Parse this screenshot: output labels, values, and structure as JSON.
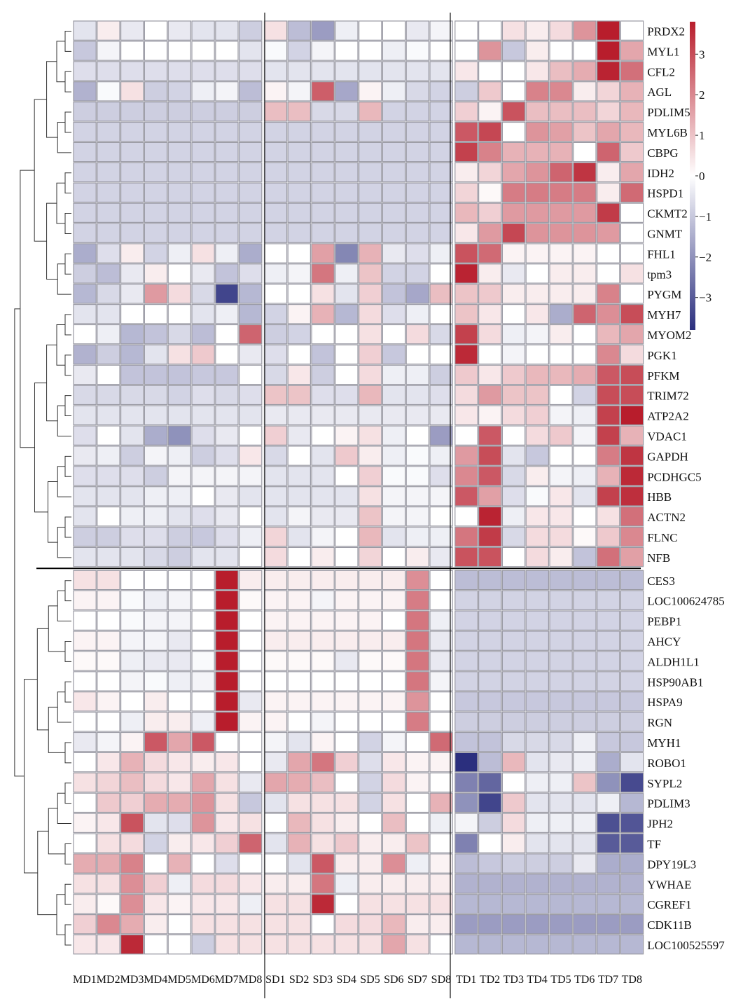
{
  "chart_data": {
    "type": "heatmap",
    "columns": [
      "MD1",
      "MD2",
      "MD3",
      "MD4",
      "MD5",
      "MD6",
      "MD7",
      "MD8",
      "SD1",
      "SD2",
      "SD3",
      "SD4",
      "SD5",
      "SD6",
      "SD7",
      "SD8",
      "TD1",
      "TD2",
      "TD3",
      "TD4",
      "TD5",
      "TD6",
      "TD7",
      "TD8"
    ],
    "rows": [
      "PRDX2",
      "MYL1",
      "CFL2",
      "AGL",
      "PDLIM5",
      "MYL6B",
      "CBPG",
      "IDH2",
      "HSPD1",
      "CKMT2",
      "GNMT",
      "FHL1",
      "tpm3",
      "PYGM",
      "MYH7",
      "MYOM2",
      "PGK1",
      "PFKM",
      "TRIM72",
      "ATP2A2",
      "VDAC1",
      "GAPDH",
      "PCDHGC5",
      "HBB",
      "ACTN2",
      "FLNC",
      "NFB",
      "CES3",
      "LOC100624785",
      "PEBP1",
      "AHCY",
      "ALDH1L1",
      "HSP90AB1",
      "HSPA9",
      "RGN",
      "MYH1",
      "ROBO1",
      "SYPL2",
      "PDLIM3",
      "JPH2",
      "TF",
      "DPY19L3",
      "YWHAE",
      "CGREF1",
      "CDK11B",
      "LOC100525597"
    ],
    "values": [
      [
        -0.5,
        0.3,
        -0.4,
        0,
        -0.4,
        -0.5,
        -0.5,
        -0.9,
        0.5,
        -1.2,
        -1.8,
        -0.3,
        0,
        0,
        -0.4,
        -0.2,
        0,
        0,
        0.5,
        0.3,
        0.6,
        1.8,
        3.8,
        0
      ],
      [
        -1,
        -0.2,
        0,
        0,
        0,
        0,
        0,
        -0.5,
        -0.1,
        -0.8,
        -0.2,
        0,
        0,
        -0.3,
        -0.1,
        0,
        0,
        1.8,
        -1,
        0.3,
        0,
        0,
        3.8,
        1.5
      ],
      [
        -0.6,
        -0.6,
        -0.6,
        -0.6,
        -0.6,
        -0.6,
        -0.6,
        -0.6,
        -0.5,
        -0.5,
        -0.5,
        -0.5,
        -0.5,
        -0.5,
        -0.5,
        -0.5,
        0.4,
        0,
        0,
        0.4,
        1.1,
        1.4,
        3.7,
        2.4
      ],
      [
        -1.4,
        -0.1,
        0.5,
        -0.9,
        -0.8,
        -0.3,
        -0.2,
        -1.2,
        0.2,
        -0.2,
        2.7,
        -1.6,
        0.2,
        -0.3,
        -0.7,
        -0.8,
        -0.9,
        0.9,
        0,
        2.1,
        2.0,
        0.3,
        0.7,
        1.3
      ],
      [
        -0.9,
        -0.9,
        -0.9,
        -0.9,
        -0.9,
        -0.9,
        -0.9,
        -0.9,
        1.1,
        1.1,
        -0.7,
        -0.7,
        1.2,
        -0.8,
        -0.8,
        -0.8,
        0.8,
        0.2,
        2.9,
        1.1,
        1.1,
        1.1,
        0.7,
        1.2
      ],
      [
        -0.8,
        -0.8,
        -0.8,
        -0.8,
        -0.8,
        -0.8,
        -0.8,
        -0.8,
        -0.8,
        -0.8,
        -0.8,
        -0.8,
        -0.8,
        -0.8,
        -0.8,
        -0.8,
        2.8,
        3.1,
        0,
        1.8,
        1.6,
        1.0,
        1.5,
        1.2
      ],
      [
        -0.8,
        -0.8,
        -0.8,
        -0.8,
        -0.8,
        -0.8,
        -0.8,
        -0.8,
        -0.8,
        -0.8,
        -0.8,
        -0.8,
        -0.8,
        -0.8,
        -0.8,
        -0.8,
        3.2,
        2.1,
        1.3,
        1.3,
        1.3,
        0,
        2.6,
        0.9
      ],
      [
        -0.8,
        -0.8,
        -0.8,
        -0.8,
        -0.8,
        -0.8,
        -0.8,
        -0.8,
        -0.8,
        -0.8,
        -0.8,
        -0.8,
        -0.8,
        -0.8,
        -0.8,
        -0.8,
        0.3,
        0.7,
        1.5,
        1.8,
        2.6,
        3.4,
        0.3,
        1.5
      ],
      [
        -0.8,
        -0.8,
        -0.8,
        -0.8,
        -0.8,
        -0.8,
        -0.8,
        -0.8,
        -0.8,
        -0.8,
        -0.8,
        -0.8,
        -0.8,
        -0.8,
        -0.8,
        -0.8,
        0.7,
        0.1,
        2.2,
        2.2,
        2.2,
        2.2,
        0.3,
        2.5
      ],
      [
        -0.8,
        -0.8,
        -0.8,
        -0.8,
        -0.8,
        -0.8,
        -0.8,
        -0.8,
        -0.8,
        -0.8,
        -0.8,
        -0.8,
        -0.8,
        -0.8,
        -0.8,
        -0.8,
        1.2,
        0.8,
        1.7,
        1.7,
        1.7,
        1.7,
        3.3,
        0
      ],
      [
        -0.8,
        -0.8,
        -0.8,
        -0.8,
        -0.8,
        -0.8,
        -0.8,
        -0.8,
        -0.8,
        -0.8,
        -0.8,
        -0.8,
        -0.8,
        -0.8,
        -0.8,
        -0.8,
        0.4,
        1.7,
        3.1,
        1.8,
        1.8,
        1.8,
        1.7,
        0
      ],
      [
        -1.5,
        -0.6,
        0.3,
        -0.8,
        -0.3,
        0.5,
        -0.3,
        -1.5,
        0,
        0,
        1.6,
        -2.2,
        1.3,
        -0.4,
        -0.6,
        -0.3,
        2.9,
        2.5,
        0.2,
        0.2,
        0.2,
        0.2,
        0,
        0
      ],
      [
        -0.9,
        -1.2,
        -0.4,
        0.3,
        0,
        -0.4,
        -1.1,
        -0.6,
        -0.3,
        -0.2,
        2.3,
        -0.3,
        1.0,
        -0.8,
        -0.8,
        0,
        3.7,
        0.3,
        -0.4,
        0,
        0.3,
        0.3,
        0,
        0.5
      ],
      [
        -1.3,
        -0.7,
        -0.4,
        1.7,
        0.6,
        -0.7,
        -3.4,
        -1.3,
        0,
        0,
        0.5,
        -0.5,
        0.8,
        -1.1,
        -1.6,
        1.1,
        1.0,
        0.9,
        0.3,
        0.3,
        0.3,
        0.3,
        2.1,
        0
      ],
      [
        -0.5,
        -0.5,
        0,
        0,
        0,
        -0.5,
        -0.3,
        -1.3,
        -0.8,
        0.2,
        1.3,
        -1.3,
        0.6,
        -0.6,
        -0.3,
        0,
        1.0,
        0.4,
        0,
        0.4,
        -1.5,
        2.6,
        1.9,
        3.0
      ],
      [
        0,
        -0.3,
        -1.3,
        -1.1,
        -0.7,
        -1.2,
        0,
        2.6,
        -0.9,
        -0.8,
        0,
        0,
        0.5,
        0,
        0.6,
        -0.7,
        3.2,
        0.6,
        -0.3,
        -0.2,
        0.3,
        0,
        1.2,
        1.5
      ],
      [
        -1.4,
        -0.9,
        -1.3,
        -0.5,
        0.5,
        0.9,
        0,
        -0.4,
        -0.6,
        0,
        -1.1,
        0,
        0.8,
        -1.0,
        0,
        0,
        3.6,
        0,
        -0.2,
        0,
        0,
        0,
        2.0,
        0.6
      ],
      [
        -0.4,
        0,
        -1.1,
        -1.1,
        -1.1,
        -1.0,
        -1.0,
        0,
        -0.7,
        0.4,
        -0.9,
        0,
        0.6,
        -0.3,
        -0.3,
        -0.9,
        0.9,
        0.4,
        0.9,
        1.2,
        1.2,
        1.4,
        2.8,
        3.0
      ],
      [
        -0.7,
        -0.7,
        -0.7,
        -0.7,
        -0.8,
        -0.6,
        -0.7,
        -0.6,
        1.0,
        1.0,
        -0.6,
        -0.6,
        1.2,
        -0.5,
        -0.5,
        -0.6,
        0.6,
        1.7,
        1.0,
        1.0,
        0,
        -0.8,
        3.0,
        3.0
      ],
      [
        -0.5,
        -0.5,
        -0.5,
        -0.5,
        -0.5,
        -0.5,
        -0.5,
        -0.5,
        -0.4,
        -0.4,
        -0.4,
        -0.4,
        -0.4,
        -0.4,
        -0.4,
        -0.4,
        0.4,
        0.2,
        0.6,
        0.8,
        -0.2,
        -0.3,
        3.2,
        3.8
      ],
      [
        -0.6,
        0,
        -0.5,
        -1.5,
        -2.0,
        -0.6,
        -0.4,
        0,
        0.8,
        -0.4,
        0,
        0.2,
        0.5,
        -0.3,
        0,
        -1.8,
        0,
        2.8,
        0,
        0.6,
        0.9,
        -0.2,
        3.2,
        1.3
      ],
      [
        -0.4,
        -0.3,
        -0.9,
        -0.2,
        -0.3,
        -0.9,
        -0.6,
        0.4,
        -0.7,
        0,
        -0.5,
        0.9,
        0.3,
        -0.3,
        -0.1,
        -0.3,
        1.7,
        3.0,
        -0.5,
        -1.0,
        0,
        0,
        2.2,
        3.4
      ],
      [
        -0.6,
        -0.6,
        -0.6,
        -0.9,
        -0.2,
        -0.2,
        -0.2,
        -0.2,
        -0.5,
        -0.5,
        -0.5,
        0,
        0.8,
        -0.1,
        -0.1,
        -0.6,
        2.0,
        2.8,
        -0.7,
        0.3,
        -0.2,
        -0.3,
        1.3,
        3.6
      ],
      [
        -0.5,
        -0.5,
        -0.5,
        -0.3,
        -0.3,
        0,
        -0.4,
        -0.5,
        -0.5,
        -0.5,
        -0.5,
        -0.5,
        0.5,
        -0.2,
        -0.2,
        -0.2,
        2.8,
        1.6,
        -0.6,
        -0.1,
        0.4,
        -0.5,
        3.2,
        3.5
      ],
      [
        -0.5,
        0,
        -0.3,
        -0.3,
        -0.5,
        -0.6,
        -0.4,
        0,
        -0.5,
        -0.2,
        -0.4,
        -0.4,
        1.0,
        -0.2,
        -0.2,
        0,
        0,
        3.7,
        -0.3,
        0.4,
        0.4,
        0,
        0.5,
        2.4
      ],
      [
        -0.9,
        -0.9,
        -0.6,
        -0.6,
        -0.9,
        -1.0,
        -0.6,
        -0.3,
        0.7,
        -0.5,
        -0.2,
        0,
        1.2,
        -0.5,
        -0.3,
        -0.3,
        2.3,
        3.3,
        -0.7,
        0.6,
        0.6,
        0.1,
        0.9,
        2.0
      ],
      [
        -0.5,
        -0.5,
        -0.5,
        -0.7,
        -0.9,
        -0.5,
        -0.5,
        0,
        0.6,
        0,
        0.3,
        0,
        0.7,
        0,
        0.3,
        -0.4,
        2.9,
        2.9,
        0,
        0.6,
        0.3,
        -1.1,
        2.4,
        1.6
      ],
      [
        0.5,
        0.5,
        0,
        0,
        0,
        0,
        3.9,
        0.3,
        0.3,
        0.3,
        0.3,
        0.3,
        0.3,
        0.3,
        1.9,
        0,
        -1.2,
        -1.2,
        -1.2,
        -1.2,
        -1.2,
        -1.2,
        -1.2,
        -1.2
      ],
      [
        0.2,
        0.2,
        -0.1,
        -0.3,
        -0.2,
        0,
        3.9,
        0.1,
        0.2,
        0.2,
        -0.2,
        0.2,
        0.2,
        0.2,
        2.2,
        0,
        -0.8,
        -0.8,
        -0.8,
        -0.8,
        -0.8,
        -0.8,
        -0.8,
        -0.8
      ],
      [
        0,
        0,
        -0.1,
        -0.2,
        -0.2,
        0,
        3.9,
        0,
        0.2,
        0.2,
        0.2,
        0.2,
        0.2,
        0,
        2.3,
        -0.3,
        -0.8,
        -0.8,
        -0.8,
        -0.8,
        -0.8,
        -0.8,
        -0.8,
        -0.8
      ],
      [
        0.2,
        0.2,
        -0.2,
        -0.2,
        -0.4,
        0,
        3.9,
        0,
        0.3,
        0.3,
        0.3,
        0.3,
        0.3,
        0.3,
        2.3,
        -0.4,
        -0.8,
        -0.8,
        -0.8,
        -0.8,
        -0.8,
        -0.8,
        -0.8,
        -0.8
      ],
      [
        0.1,
        0.1,
        -0.3,
        -0.4,
        -0.4,
        -0.1,
        3.9,
        0,
        0.1,
        0.1,
        0.1,
        -0.4,
        0.1,
        0.1,
        2.3,
        -0.4,
        -0.8,
        -0.8,
        -0.8,
        -0.8,
        -0.8,
        -0.8,
        -0.8,
        -0.8
      ],
      [
        0,
        0,
        -0.2,
        -0.1,
        -0.3,
        -0.2,
        3.9,
        0,
        0,
        0,
        0,
        0,
        0,
        0,
        2.3,
        -0.2,
        -0.8,
        -0.8,
        -0.8,
        -0.8,
        -0.8,
        -0.8,
        -0.8,
        -0.8
      ],
      [
        0.4,
        0.2,
        0,
        0.3,
        0,
        0,
        3.9,
        -0.4,
        0.2,
        0.2,
        0.2,
        0.2,
        0.2,
        0.2,
        1.8,
        0,
        -1.0,
        -1.0,
        -1.0,
        -1.0,
        -1.0,
        -1.0,
        -1.0,
        -1.0
      ],
      [
        0,
        0,
        -0.3,
        0.3,
        0.3,
        -0.3,
        3.9,
        0.2,
        0.2,
        0,
        -0.2,
        0,
        0,
        0,
        2.2,
        0,
        -0.9,
        -0.9,
        -0.9,
        -0.9,
        -0.9,
        -0.9,
        -0.9,
        -0.9
      ],
      [
        -0.4,
        -0.2,
        0.2,
        2.8,
        1.5,
        2.8,
        0,
        0,
        -0.2,
        -0.5,
        0.2,
        0,
        -0.8,
        -0.2,
        0,
        2.5,
        -1.1,
        -1.1,
        -0.7,
        -0.7,
        -0.7,
        -0.3,
        -1.0,
        -1.0
      ],
      [
        0,
        0.4,
        1.3,
        0.6,
        0.4,
        0.3,
        0.4,
        0,
        -0.4,
        1.5,
        2.3,
        0.8,
        -0.6,
        0.4,
        0.2,
        0.2,
        -3.8,
        -1.2,
        1.2,
        -0.5,
        -0.4,
        -0.3,
        -1.5,
        -0.5
      ],
      [
        0.5,
        0.7,
        1.1,
        0.6,
        0.4,
        1.5,
        0.5,
        -0.4,
        1.5,
        1.4,
        1.1,
        0,
        -0.8,
        0.6,
        0.2,
        0,
        -2.3,
        -2.8,
        0,
        -0.3,
        -0.3,
        1.0,
        -2.0,
        -3.3
      ],
      [
        0,
        0.9,
        0.8,
        1.4,
        1.4,
        1.8,
        0.5,
        -1.0,
        -0.5,
        0.5,
        0.5,
        0.5,
        -0.8,
        0.5,
        0,
        1.3,
        -2.0,
        -3.4,
        0.9,
        -0.5,
        -0.5,
        -0.5,
        -0.3,
        -1.3
      ],
      [
        0.2,
        0.4,
        2.9,
        -0.5,
        -0.6,
        1.8,
        0.4,
        0.5,
        0,
        1.2,
        0.5,
        0.3,
        0,
        1.1,
        0,
        -0.3,
        -0.2,
        -0.9,
        0.6,
        -0.3,
        -0.3,
        -0.3,
        -3.2,
        -3.1
      ],
      [
        0,
        0.5,
        0.6,
        -0.8,
        0.3,
        0.4,
        0.8,
        2.6,
        -0.5,
        1.3,
        0.5,
        0.9,
        0.3,
        0.3,
        1.0,
        0,
        -2.3,
        0,
        0.3,
        -0.5,
        -0.5,
        -0.5,
        -3.0,
        -3.0
      ],
      [
        1.4,
        1.4,
        2.1,
        0,
        1.3,
        0,
        -0.6,
        0,
        0,
        -0.5,
        2.8,
        0.3,
        0.3,
        1.9,
        -0.3,
        0.2,
        -1.2,
        -1.0,
        -0.9,
        -0.9,
        -0.9,
        -0.4,
        -1.5,
        -1.5
      ],
      [
        0.5,
        0.5,
        1.9,
        0.8,
        -0.3,
        0.6,
        0.6,
        0.4,
        0.3,
        0.3,
        2.3,
        -0.3,
        0.3,
        0.3,
        0.3,
        0.3,
        -1.4,
        -1.4,
        -1.4,
        -1.4,
        -1.4,
        -1.4,
        -1.4,
        -1.4
      ],
      [
        0.3,
        0.1,
        1.9,
        0.4,
        0.2,
        0.4,
        0.4,
        -0.3,
        0.5,
        0.5,
        3.6,
        0,
        0.5,
        0.5,
        0.5,
        0.5,
        -1.3,
        -1.3,
        -1.3,
        -1.3,
        -1.3,
        -1.3,
        -1.3,
        -1.3
      ],
      [
        0.8,
        2.0,
        1.4,
        0.3,
        0,
        0.5,
        0.5,
        0.5,
        0.5,
        0.5,
        0,
        0.6,
        0.6,
        1.2,
        0.3,
        0.3,
        -1.8,
        -1.8,
        -1.8,
        -1.8,
        -1.8,
        -1.8,
        -1.8,
        -1.8
      ],
      [
        0.4,
        0.4,
        3.6,
        0,
        0,
        -0.9,
        0.5,
        0.5,
        0.5,
        0.5,
        0.5,
        0.5,
        0.5,
        1.5,
        0.5,
        0,
        -1.3,
        -1.3,
        -1.3,
        -1.3,
        -1.3,
        -1.3,
        -1.3,
        -1.3
      ]
    ],
    "colorbar": {
      "ticks": [
        3,
        2,
        1,
        0,
        -1,
        -2,
        -3
      ],
      "range": [
        -3.8,
        3.8
      ],
      "low_color": "#2b2f7e",
      "mid_color": "#ffffff",
      "high_color": "#b81d2c"
    },
    "row_groups": [
      "upper",
      "lower"
    ],
    "column_groups": [
      "MD",
      "SD",
      "TD"
    ],
    "dendrogram": "left",
    "grid": true
  }
}
